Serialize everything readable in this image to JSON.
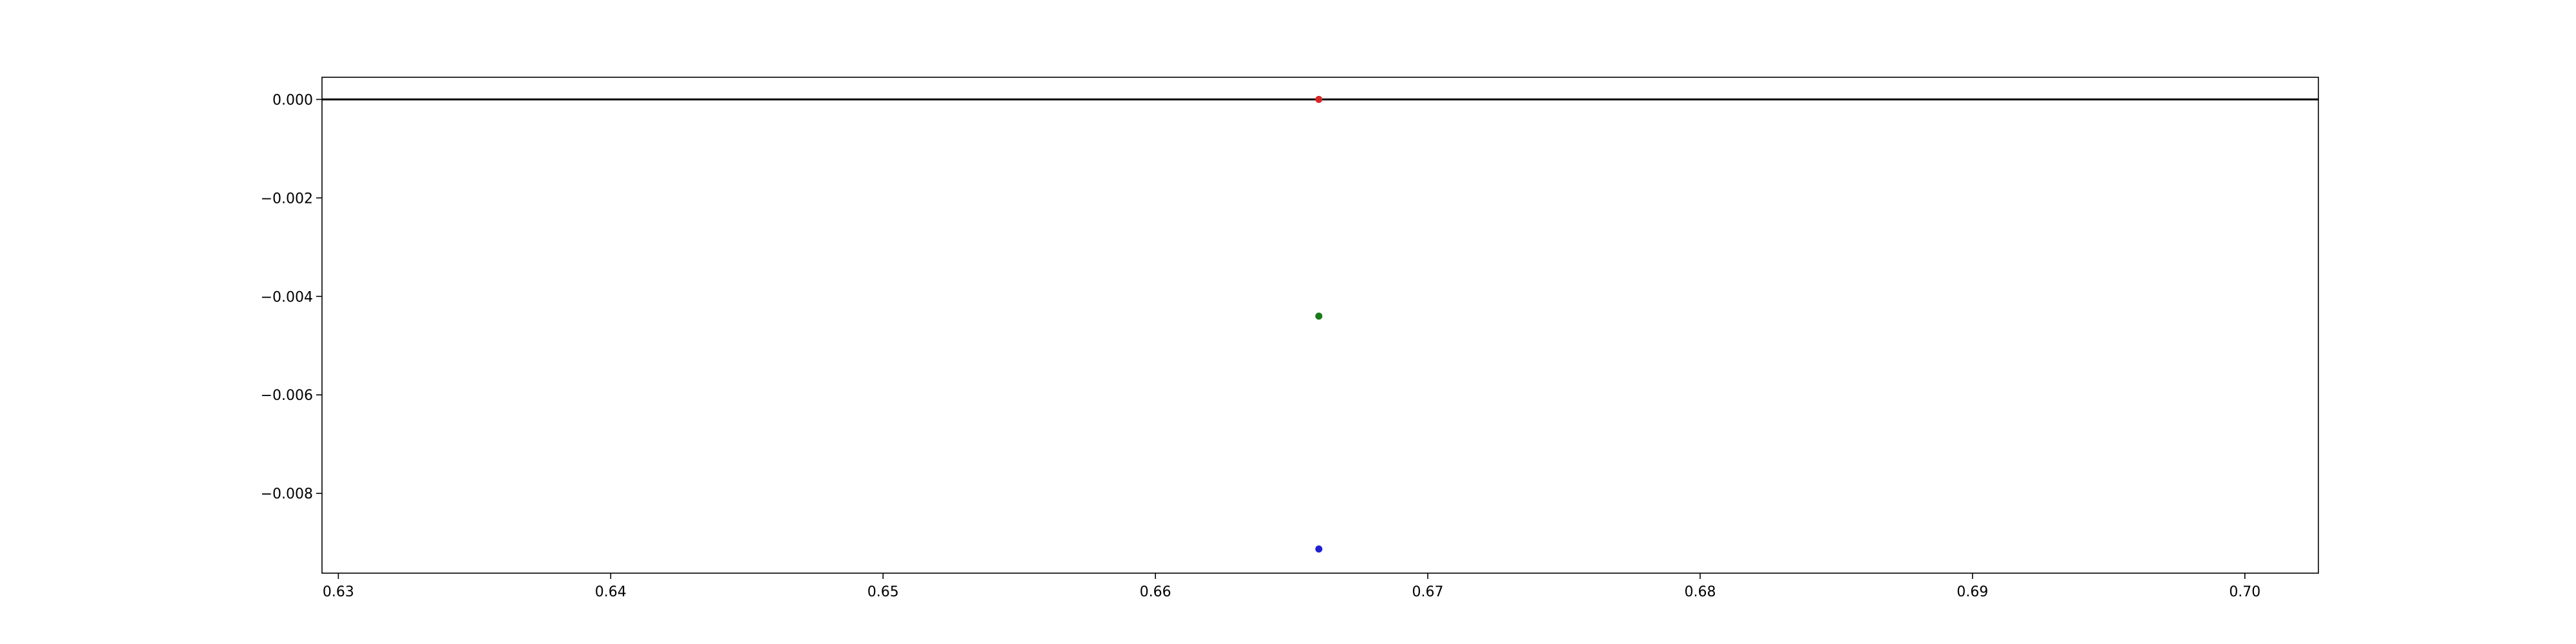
{
  "chart_data": {
    "type": "scatter",
    "title": "",
    "xlabel": "",
    "ylabel": "",
    "xlim": [
      0.6294,
      0.7027
    ],
    "ylim": [
      -0.00962,
      0.00045
    ],
    "grid": false,
    "x_ticks": [
      {
        "value": 0.63,
        "label": "0.63"
      },
      {
        "value": 0.64,
        "label": "0.64"
      },
      {
        "value": 0.65,
        "label": "0.65"
      },
      {
        "value": 0.66,
        "label": "0.66"
      },
      {
        "value": 0.67,
        "label": "0.67"
      },
      {
        "value": 0.68,
        "label": "0.68"
      },
      {
        "value": 0.69,
        "label": "0.69"
      },
      {
        "value": 0.7,
        "label": "0.70"
      }
    ],
    "y_ticks": [
      {
        "value": 0.0,
        "label": "0.000"
      },
      {
        "value": -0.002,
        "label": "−0.002"
      },
      {
        "value": -0.004,
        "label": "−0.004"
      },
      {
        "value": -0.006,
        "label": "−0.006"
      },
      {
        "value": -0.008,
        "label": "−0.008"
      }
    ],
    "hline": {
      "y": 0.0,
      "color": "#000000"
    },
    "points": [
      {
        "x": 0.666,
        "y": 0.0,
        "color": "#d62728"
      },
      {
        "x": 0.666,
        "y": -0.0044,
        "color": "#1a7a1a"
      },
      {
        "x": 0.666,
        "y": -0.00913,
        "color": "#1f1fd6"
      }
    ]
  }
}
